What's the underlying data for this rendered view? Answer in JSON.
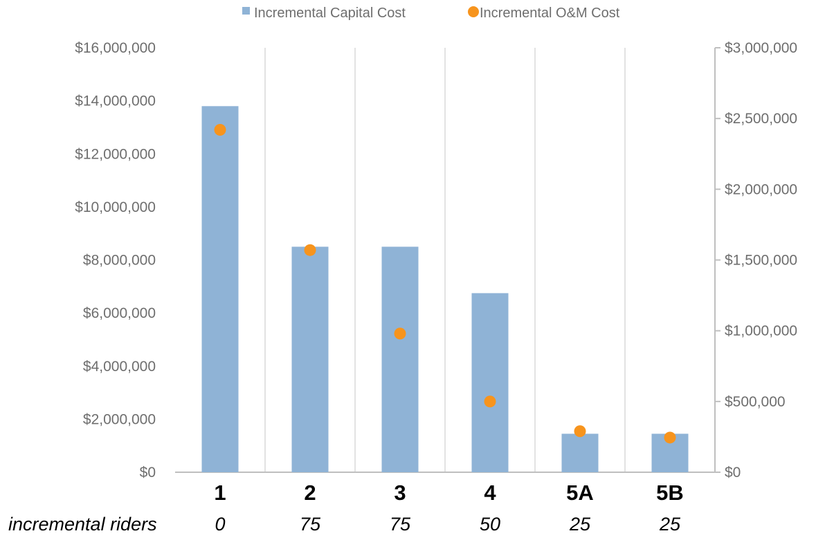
{
  "chart_data": {
    "type": "bar",
    "categories": [
      "1",
      "2",
      "3",
      "4",
      "5A",
      "5B"
    ],
    "series": [
      {
        "name": "Incremental Capital Cost",
        "type": "bar",
        "axis": "left",
        "values": [
          13800000,
          8500000,
          8500000,
          6750000,
          1450000,
          1450000
        ]
      },
      {
        "name": "Incremental O&M Cost",
        "type": "scatter",
        "axis": "right",
        "values": [
          2420000,
          1570000,
          980000,
          500000,
          290000,
          245000
        ]
      }
    ],
    "y_left": {
      "ylim": [
        0,
        16000000
      ],
      "ticks": [
        0,
        2000000,
        4000000,
        6000000,
        8000000,
        10000000,
        12000000,
        14000000,
        16000000
      ],
      "tick_labels": [
        "$0",
        "$2,000,000",
        "$4,000,000",
        "$6,000,000",
        "$8,000,000",
        "$10,000,000",
        "$12,000,000",
        "$14,000,000",
        "$16,000,000"
      ]
    },
    "y_right": {
      "ylim": [
        0,
        3000000
      ],
      "ticks": [
        0,
        500000,
        1000000,
        1500000,
        2000000,
        2500000,
        3000000
      ],
      "tick_labels": [
        "$0",
        "$500,000",
        "$1,000,000",
        "$1,500,000",
        "$2,000,000",
        "$2,500,000",
        "$3,000,000"
      ]
    },
    "riders_label": "incremental riders",
    "riders": [
      "0",
      "75",
      "75",
      "50",
      "25",
      "25"
    ],
    "legend_position": "top",
    "grid": "vertical category separators",
    "colors": {
      "bar": "#8fb3d6",
      "marker": "#f7941d",
      "grid": "#d9d9d9",
      "axis": "#bfbfbf"
    }
  }
}
